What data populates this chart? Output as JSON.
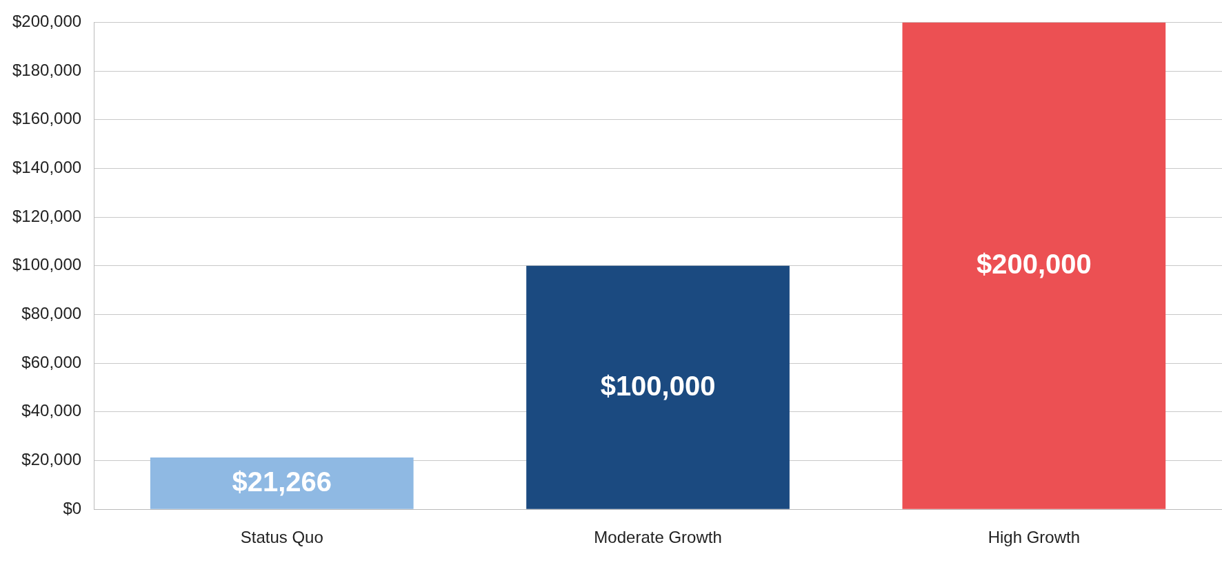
{
  "chart_data": {
    "type": "bar",
    "categories": [
      "Status Quo",
      "Moderate Growth",
      "High Growth"
    ],
    "values": [
      21266,
      100000,
      200000
    ],
    "colors": [
      "#8fb9e3",
      "#1b4a80",
      "#ec5053"
    ],
    "value_labels": [
      "$21,266",
      "$100,000",
      "$200,000"
    ],
    "ylim": [
      0,
      200000
    ],
    "yticks": [
      {
        "value": 0,
        "label": "$0"
      },
      {
        "value": 20000,
        "label": "$20,000"
      },
      {
        "value": 40000,
        "label": "$40,000"
      },
      {
        "value": 60000,
        "label": "$60,000"
      },
      {
        "value": 80000,
        "label": "$80,000"
      },
      {
        "value": 100000,
        "label": "$100,000"
      },
      {
        "value": 120000,
        "label": "$120,000"
      },
      {
        "value": 140000,
        "label": "$140,000"
      },
      {
        "value": 160000,
        "label": "$160,000"
      },
      {
        "value": 180000,
        "label": "$180,000"
      },
      {
        "value": 200000,
        "label": "$200,000"
      }
    ],
    "grid": "y",
    "legend": false
  }
}
